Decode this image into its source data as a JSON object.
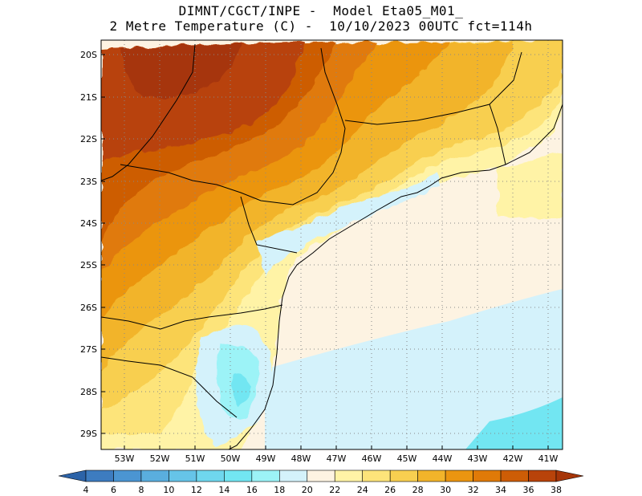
{
  "title": {
    "line1": "DIMNT/CGCT/INPE -  Model Eta05_M01_",
    "line2": "2 Metre Temperature (C) -  10/10/2023 00UTC fct=114h"
  },
  "map": {
    "latitude_labels": [
      "20S",
      "21S",
      "22S",
      "23S",
      "24S",
      "25S",
      "26S",
      "27S",
      "28S",
      "29S"
    ],
    "longitude_labels": [
      "53W",
      "52W",
      "51W",
      "50W",
      "49W",
      "48W",
      "47W",
      "46W",
      "45W",
      "44W",
      "43W",
      "42W",
      "41W"
    ]
  },
  "colorbar": {
    "ticks": [
      "4",
      "6",
      "8",
      "10",
      "12",
      "14",
      "16",
      "18",
      "20",
      "22",
      "24",
      "26",
      "28",
      "30",
      "32",
      "34",
      "36",
      "38"
    ],
    "colors": [
      "#2c63a8",
      "#3d7cc0",
      "#4b95d2",
      "#5aaede",
      "#66c4e8",
      "#6fd7ee",
      "#72e6f2",
      "#9cf3f7",
      "#d4f2fb",
      "#fdf3e2",
      "#fff3a6",
      "#fde47a",
      "#f8cf50",
      "#f2b42a",
      "#eb9510",
      "#e07a08",
      "#cd5d06",
      "#b8430a",
      "#a63508"
    ]
  }
}
